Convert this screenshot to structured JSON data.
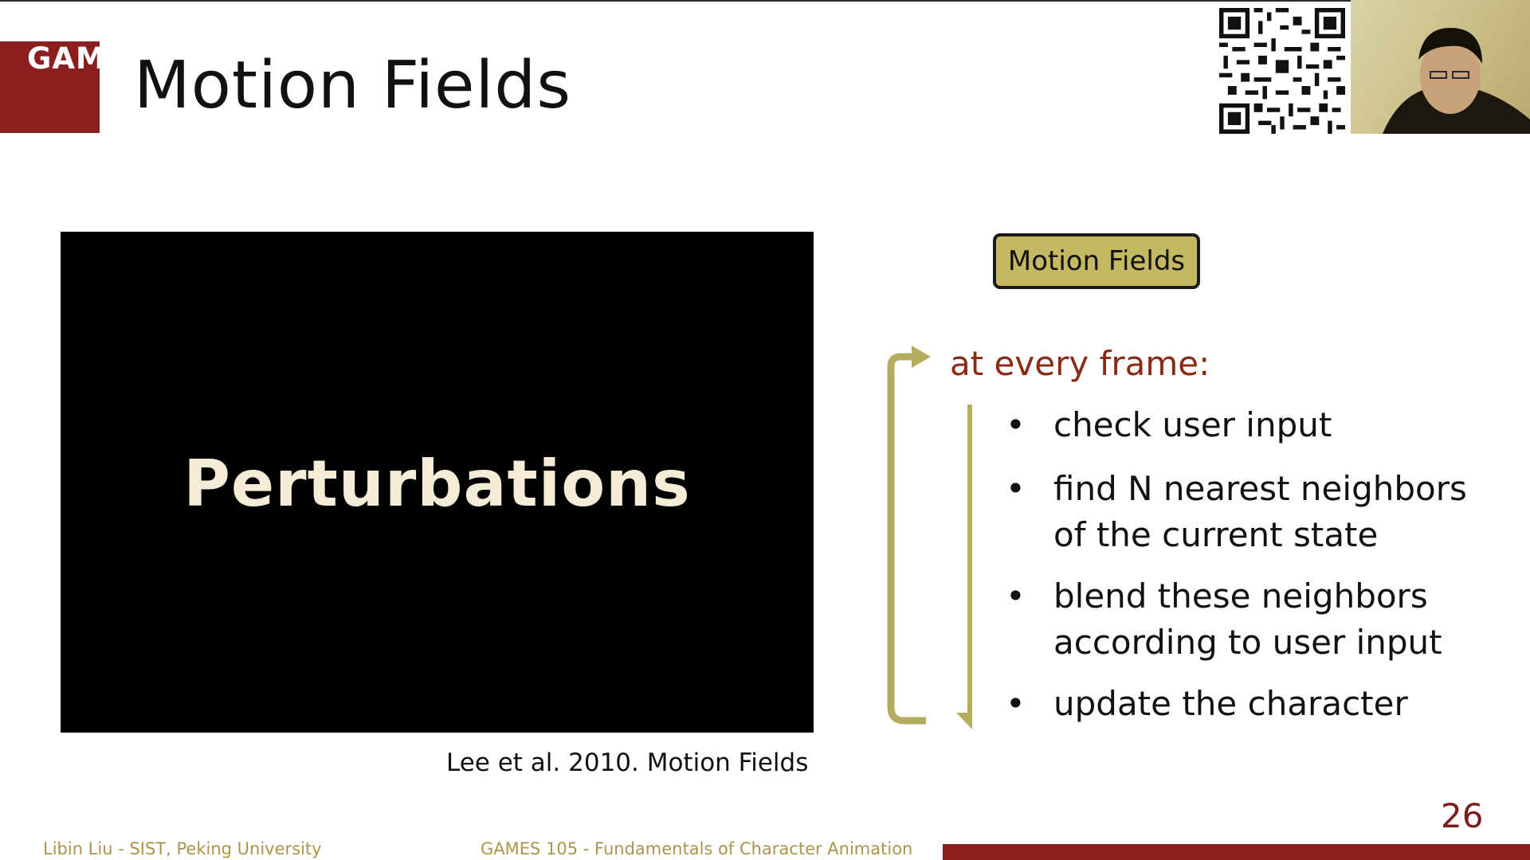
{
  "header": {
    "logo_text": "GAMES",
    "title": "Motion Fields"
  },
  "video": {
    "overlay_text": "Perturbations",
    "caption": "Lee et al. 2010. Motion Fields"
  },
  "diagram": {
    "box_label": "Motion Fields",
    "loop_label": "at every frame:",
    "bullet_glyph": "•",
    "items": [
      "check user input",
      "find N nearest neighbors of the current state",
      "blend these neighbors according to user input",
      "update the character"
    ]
  },
  "footer": {
    "author": "Libin Liu - SIST, Peking University",
    "course": "GAMES 105 - Fundamentals of Character Animation",
    "page_number": "26"
  },
  "colors": {
    "brand_red": "#8b1f1f",
    "accent_olive": "#c4b863",
    "arrow_olive": "#b5ad5e",
    "footer_text": "#a8944a"
  },
  "icons": {
    "qr_code": "qr-code-icon",
    "webcam": "webcam-feed"
  }
}
